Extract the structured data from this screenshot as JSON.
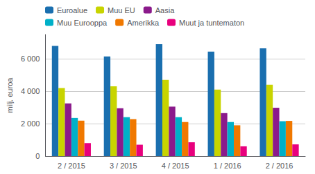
{
  "chart_data": {
    "type": "bar",
    "ylabel": "milj. euroa",
    "categories": [
      "2 / 2015",
      "3 / 2015",
      "4 / 2015",
      "1 / 2016",
      "2 / 2016"
    ],
    "series": [
      {
        "name": "Euroalue",
        "color": "#1a6faf",
        "values": [
          6800,
          6150,
          6900,
          6450,
          6650
        ]
      },
      {
        "name": "Muu EU",
        "color": "#c8d400",
        "values": [
          4200,
          4300,
          4700,
          4100,
          4400
        ]
      },
      {
        "name": "Aasia",
        "color": "#8b1a8b",
        "values": [
          3250,
          2950,
          3050,
          2650,
          2980
        ]
      },
      {
        "name": "Muu Eurooppa",
        "color": "#00b0c8",
        "values": [
          2350,
          2400,
          2400,
          2100,
          2150
        ]
      },
      {
        "name": "Amerikka",
        "color": "#f07800",
        "values": [
          2180,
          2280,
          2100,
          1900,
          2170
        ]
      },
      {
        "name": "Muut ja tuntematon",
        "color": "#e8007d",
        "values": [
          800,
          700,
          850,
          600,
          720
        ]
      }
    ],
    "ylim": [
      0,
      7500
    ],
    "yticks": [
      0,
      {
        "value": 2000,
        "label": "2 000"
      },
      {
        "value": 4000,
        "label": "4 000"
      },
      {
        "value": 6000,
        "label": "6 000"
      }
    ],
    "grid": true,
    "legend": "upper left"
  }
}
